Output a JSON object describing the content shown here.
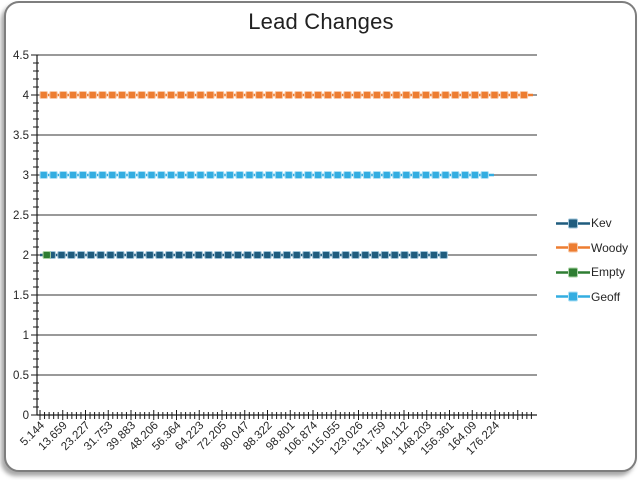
{
  "window": {
    "background_color": "#ffffff",
    "frame_border_color": "#7e7e7e",
    "frame_fill_color": "#ffffff"
  },
  "colors": {
    "axis": "#1a1a1a",
    "gridline": "#333333",
    "tick_label_text": "#262626",
    "title_text": "#212121"
  },
  "chart_data": {
    "type": "line",
    "title": "Lead Changes",
    "xlabel": "",
    "ylabel": "",
    "ylim": [
      0,
      4.5
    ],
    "grid": "horizontal-major",
    "legend_position": "right",
    "y_tick_labels": [
      "0",
      "0.5",
      "1",
      "1.5",
      "2",
      "2.5",
      "3",
      "3.5",
      "4",
      "4.5"
    ],
    "x_tick_labels": [
      "5.144",
      "13.659",
      "23.227",
      "31.753",
      "39.883",
      "48.206",
      "56.364",
      "64.223",
      "72.205",
      "80.047",
      "88.322",
      "98.801",
      "106.874",
      "115.055",
      "123.026",
      "131.759",
      "140.112",
      "148.203",
      "156.361",
      "164.09",
      "176.224"
    ],
    "series": [
      {
        "name": "Kev",
        "color": "#1F5C7E",
        "halo": "#9DC3D9",
        "value": 2,
        "frac_start": 0.006,
        "frac_end": 0.814,
        "marker_frac_start": 0.022,
        "marker": "square",
        "point_only": false
      },
      {
        "name": "Woody",
        "color": "#ED7D31",
        "halo": "#F8C9A8",
        "value": 4,
        "frac_start": 0.006,
        "frac_end": 0.992,
        "marker_frac_start": 0.006,
        "marker": "square",
        "point_only": false
      },
      {
        "name": "Empty",
        "color": "#2E7D32",
        "halo": "#A9D3A4",
        "value": 2,
        "frac_start": 0.0135,
        "frac_end": 0.0135,
        "marker_frac_start": 0.0135,
        "marker": "square",
        "point_only": true
      },
      {
        "name": "Geoff",
        "color": "#33ADE1",
        "halo": "#AEE0F5",
        "value": 3,
        "frac_start": 0.006,
        "frac_end": 0.914,
        "marker_frac_start": 0.006,
        "marker": "square",
        "point_only": false
      }
    ]
  }
}
